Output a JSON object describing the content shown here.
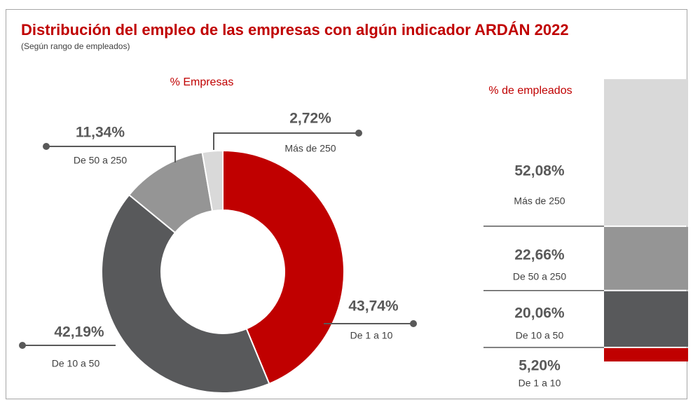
{
  "header": {
    "title": "Distribución del empleo de las empresas con algún indicador ARDÁN 2022",
    "subtitle": "(Según rango de empleados)"
  },
  "chart_data": [
    {
      "type": "donut",
      "title": "% Empresas",
      "categories": [
        "De 1 a 10",
        "De 10 a 50",
        "De 50 a 250",
        "Más de 250"
      ],
      "values": [
        43.74,
        42.19,
        11.34,
        2.72
      ],
      "value_labels": [
        "43,74%",
        "42,19%",
        "11,34%",
        "2,72%"
      ],
      "colors": [
        "#c00000",
        "#58595b",
        "#959595",
        "#d9d9d9"
      ]
    },
    {
      "type": "stacked_bar",
      "title": "% de empleados",
      "categories": [
        "De 1 a 10",
        "De 10 a 50",
        "De 50 a 250",
        "Más de 250"
      ],
      "values": [
        5.2,
        20.06,
        22.66,
        52.08
      ],
      "value_labels": [
        "5,20%",
        "20,06%",
        "22,66%",
        "52,08%"
      ],
      "colors": [
        "#c00000",
        "#58595b",
        "#959595",
        "#d9d9d9"
      ],
      "ylim": [
        0,
        100
      ]
    }
  ]
}
